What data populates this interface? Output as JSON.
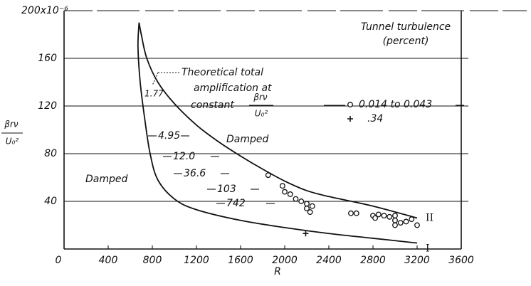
{
  "chart_data": {
    "type": "scatter",
    "x_label": "R",
    "y_label": {
      "numerator": "βrν",
      "denominator": "U₀²"
    },
    "xlim": [
      0,
      3600
    ],
    "xticks": [
      0,
      400,
      800,
      1200,
      1600,
      2000,
      2400,
      2800,
      3200,
      3600
    ],
    "ylim": [
      0,
      200
    ],
    "yticks": [
      40,
      80,
      120,
      160,
      {
        "value": 200,
        "label": "200x10⁻⁶"
      }
    ],
    "grid": "y",
    "legend_title": [
      "Tunnel turbulence",
      "(percent)"
    ],
    "series": [
      {
        "name": "0.014 to 0.043",
        "marker": "circle",
        "color": "#111111",
        "x": [
          1850,
          1980,
          2000,
          2050,
          2100,
          2150,
          2200,
          2200,
          2230,
          2250,
          2600,
          2650,
          2800,
          2820,
          2850,
          2900,
          2950,
          3000,
          3000,
          3000,
          3050,
          3100,
          3150,
          3200
        ],
        "values": [
          62,
          53,
          48,
          46,
          42,
          40,
          38,
          34,
          31,
          36,
          30,
          30,
          28,
          26,
          29,
          28,
          27,
          28,
          24,
          20,
          22,
          23,
          25,
          20
        ]
      },
      {
        "name": ".34",
        "marker": "plus",
        "color": "#111111",
        "x": [
          2190
        ],
        "values": [
          13
        ]
      }
    ],
    "curves": [
      {
        "name": "II",
        "x": [
          680,
          700,
          750,
          850,
          1000,
          1200,
          1400,
          1600,
          1800,
          2000,
          2200,
          2400,
          2800,
          3200
        ],
        "values": [
          190,
          180,
          160,
          140,
          122,
          104,
          90,
          78,
          67,
          57,
          49,
          44,
          36,
          26
        ]
      },
      {
        "name": "I",
        "x": [
          680,
          670,
          690,
          730,
          780,
          850,
          1000,
          1200,
          1600,
          2000,
          2400,
          2800,
          3200
        ],
        "values": [
          190,
          170,
          140,
          110,
          80,
          58,
          42,
          33,
          24,
          18,
          13,
          9,
          5
        ]
      }
    ],
    "annotation": {
      "lines": [
        "Theoretical total",
        "amplification at",
        "constant"
      ],
      "numerator": "βrν",
      "denominator": "U₀²"
    },
    "contour_labels": [
      "1.77",
      "4.95",
      "12.0",
      "36.6",
      "103",
      "742"
    ],
    "region_labels": [
      "Damped",
      "Damped"
    ]
  }
}
